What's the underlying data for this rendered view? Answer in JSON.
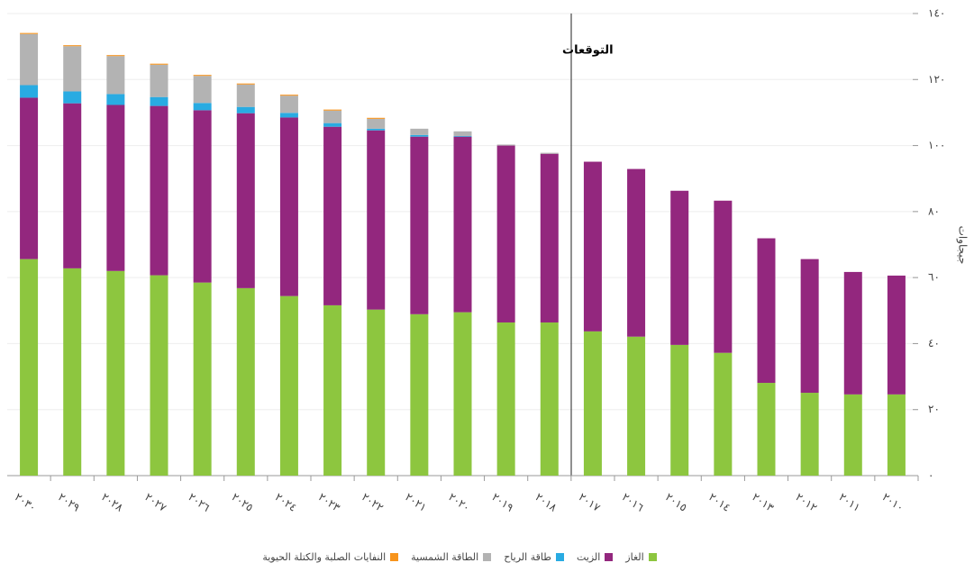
{
  "chart_data": {
    "type": "stacked_bar",
    "y_label": "جيجاوات",
    "annotation": "التوقعات",
    "categories": [
      "٢٠١٠",
      "٢٠١١",
      "٢٠١٢",
      "٢٠١٣",
      "٢٠١٤",
      "٢٠١٥",
      "٢٠١٦",
      "٢٠١٧",
      "٢٠١٨",
      "٢٠١٩",
      "٢٠٢٠",
      "٢٠٢١",
      "٢٠٢٢",
      "٢٠٢٣",
      "٢٠٢٤",
      "٢٠٢٥",
      "٢٠٢٦",
      "٢٠٢٧",
      "٢٠٢٨",
      "٢٠٢٩",
      "٢٠٣٠"
    ],
    "series": [
      {
        "name": "الغاز",
        "color": "#8dc63f",
        "values": [
          24.6,
          24.6,
          25.1,
          28.1,
          37.2,
          39.6,
          42.1,
          43.7,
          46.4,
          46.4,
          49.5,
          48.9,
          50.3,
          51.6,
          54.4,
          56.8,
          58.5,
          60.7,
          62.0,
          62.8,
          65.6
        ]
      },
      {
        "name": "الزيت",
        "color": "#93277e",
        "values": [
          36.0,
          37.1,
          40.5,
          43.8,
          46.1,
          46.7,
          50.8,
          51.4,
          51.1,
          53.6,
          53.2,
          53.8,
          54.3,
          54.1,
          54.1,
          53.0,
          52.2,
          51.3,
          50.3,
          50.0,
          48.9
        ]
      },
      {
        "name": "طاقة الرياح",
        "color": "#29abe2",
        "values": [
          0,
          0,
          0,
          0,
          0,
          0,
          0,
          0,
          0,
          0,
          0.2,
          0.5,
          0.5,
          1.1,
          1.4,
          1.9,
          2.2,
          2.7,
          3.3,
          3.6,
          3.8
        ]
      },
      {
        "name": "الطاقة الشمسية",
        "color": "#b3b3b3",
        "values": [
          0,
          0,
          0,
          0,
          0,
          0,
          0,
          0,
          0.3,
          0.3,
          1.4,
          1.9,
          3.0,
          3.8,
          5.2,
          6.8,
          8.2,
          9.8,
          11.5,
          13.7,
          15.5
        ]
      },
      {
        "name": "النفايات الصلبة والكتلة الحيوية",
        "color": "#f7941d",
        "values": [
          0,
          0,
          0,
          0,
          0,
          0,
          0,
          0,
          0,
          0,
          0,
          0,
          0.3,
          0.3,
          0.3,
          0.3,
          0.3,
          0.3,
          0.3,
          0.3,
          0.3
        ]
      }
    ],
    "ylim": [
      0,
      140
    ],
    "yticks": [
      {
        "value": 0,
        "label": "٠"
      },
      {
        "value": 20,
        "label": "٢٠"
      },
      {
        "value": 40,
        "label": "٤٠"
      },
      {
        "value": 60,
        "label": "٦٠"
      },
      {
        "value": 80,
        "label": "٨٠"
      },
      {
        "value": 100,
        "label": "١٠٠"
      },
      {
        "value": 120,
        "label": "١٢٠"
      },
      {
        "value": 140,
        "label": "١٤٠"
      }
    ],
    "grid": true
  }
}
